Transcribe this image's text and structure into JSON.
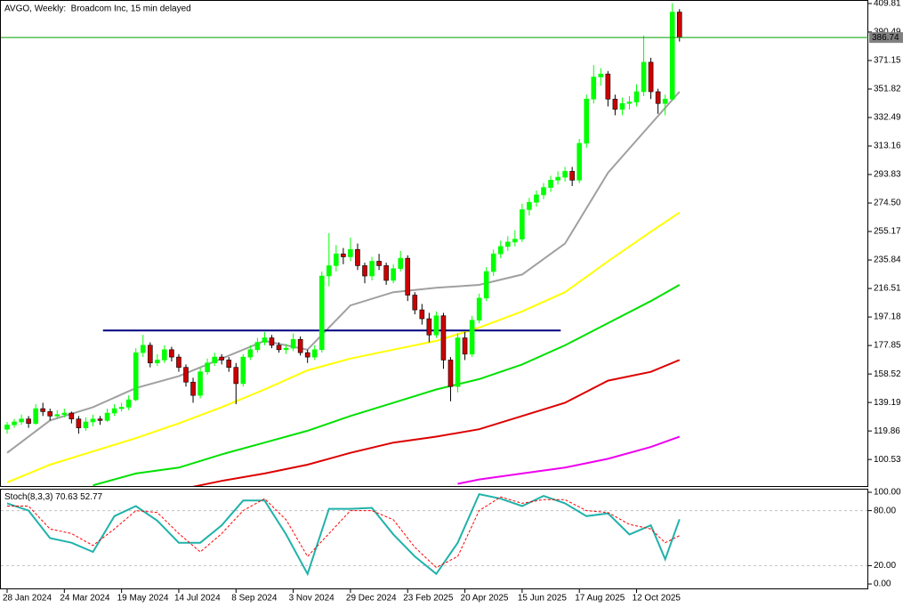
{
  "chart_data": {
    "type": "candlestick",
    "title": "AVGO, Weekly:  Broadcom Inc, 15 min delayed",
    "categories": [
      "28 Jan 2024",
      null,
      null,
      null,
      null,
      null,
      null,
      null,
      "24 Mar 2024",
      null,
      null,
      null,
      null,
      null,
      null,
      null,
      "19 May 2024",
      null,
      null,
      null,
      null,
      null,
      null,
      null,
      "14 Jul 2024",
      null,
      null,
      null,
      null,
      null,
      null,
      null,
      "8 Sep 2024",
      null,
      null,
      null,
      null,
      null,
      null,
      null,
      "3 Nov 2024",
      null,
      null,
      null,
      null,
      null,
      null,
      null,
      "29 Dec 2024",
      null,
      null,
      null,
      null,
      null,
      null,
      null,
      "23 Feb 2025",
      null,
      null,
      null,
      null,
      null,
      null,
      null,
      "20 Apr 2025",
      null,
      null,
      null,
      null,
      null,
      null,
      null,
      "15 Jun 2025",
      null,
      null,
      null,
      null,
      null,
      null,
      null,
      "17 Aug 2025",
      null,
      null,
      null,
      null,
      null,
      null,
      null,
      "12 Oct 2025",
      null,
      null,
      null,
      null,
      null,
      null
    ],
    "candles": [
      [
        121,
        126,
        118,
        124
      ],
      [
        124,
        128,
        122,
        126
      ],
      [
        126,
        131,
        124,
        128
      ],
      [
        128,
        130,
        122,
        125
      ],
      [
        125,
        138,
        124,
        135
      ],
      [
        135,
        139,
        130,
        133
      ],
      [
        133,
        135,
        127,
        130
      ],
      [
        130,
        134,
        128,
        131
      ],
      [
        131,
        135,
        129,
        132
      ],
      [
        132,
        133,
        125,
        128
      ],
      [
        128,
        130,
        118,
        122
      ],
      [
        122,
        129,
        120,
        126
      ],
      [
        126,
        131,
        123,
        128
      ],
      [
        128,
        130,
        124,
        127
      ],
      [
        127,
        135,
        126,
        132
      ],
      [
        132,
        138,
        130,
        135
      ],
      [
        135,
        139,
        133,
        136
      ],
      [
        136,
        144,
        134,
        141
      ],
      [
        141,
        176,
        140,
        173
      ],
      [
        173,
        185,
        170,
        178
      ],
      [
        178,
        180,
        163,
        166
      ],
      [
        166,
        172,
        164,
        168
      ],
      [
        168,
        178,
        166,
        175
      ],
      [
        175,
        177,
        167,
        170
      ],
      [
        170,
        172,
        160,
        163
      ],
      [
        163,
        165,
        150,
        153
      ],
      [
        153,
        156,
        139,
        144
      ],
      [
        144,
        163,
        142,
        160
      ],
      [
        160,
        169,
        158,
        166
      ],
      [
        166,
        173,
        164,
        170
      ],
      [
        170,
        172,
        165,
        168
      ],
      [
        168,
        170,
        160,
        163
      ],
      [
        163,
        166,
        138,
        152
      ],
      [
        152,
        172,
        150,
        170
      ],
      [
        170,
        178,
        168,
        175
      ],
      [
        175,
        183,
        173,
        180
      ],
      [
        180,
        187,
        178,
        183
      ],
      [
        183,
        185,
        176,
        178
      ],
      [
        178,
        180,
        173,
        175
      ],
      [
        175,
        179,
        172,
        176
      ],
      [
        176,
        186,
        174,
        182
      ],
      [
        182,
        184,
        171,
        173
      ],
      [
        173,
        175,
        166,
        170
      ],
      [
        170,
        178,
        168,
        175
      ],
      [
        175,
        228,
        173,
        225
      ],
      [
        225,
        254,
        218,
        232
      ],
      [
        232,
        246,
        228,
        240
      ],
      [
        240,
        244,
        233,
        238
      ],
      [
        238,
        251,
        235,
        243
      ],
      [
        243,
        247,
        229,
        232
      ],
      [
        232,
        234,
        220,
        225
      ],
      [
        225,
        238,
        222,
        235
      ],
      [
        235,
        240,
        229,
        232
      ],
      [
        232,
        234,
        219,
        222
      ],
      [
        222,
        233,
        220,
        230
      ],
      [
        230,
        242,
        228,
        237
      ],
      [
        237,
        239,
        208,
        212
      ],
      [
        212,
        214,
        199,
        202
      ],
      [
        202,
        206,
        192,
        196
      ],
      [
        196,
        200,
        180,
        185
      ],
      [
        185,
        201,
        183,
        198
      ],
      [
        198,
        200,
        162,
        168
      ],
      [
        168,
        170,
        140,
        150
      ],
      [
        150,
        186,
        146,
        183
      ],
      [
        183,
        187,
        168,
        172
      ],
      [
        172,
        198,
        170,
        195
      ],
      [
        195,
        213,
        193,
        210
      ],
      [
        210,
        231,
        208,
        228
      ],
      [
        228,
        243,
        225,
        240
      ],
      [
        240,
        249,
        237,
        245
      ],
      [
        245,
        252,
        242,
        248
      ],
      [
        248,
        256,
        245,
        250
      ],
      [
        250,
        274,
        248,
        270
      ],
      [
        270,
        278,
        266,
        275
      ],
      [
        275,
        283,
        272,
        280
      ],
      [
        280,
        288,
        277,
        285
      ],
      [
        285,
        293,
        282,
        290
      ],
      [
        290,
        296,
        287,
        292
      ],
      [
        292,
        299,
        289,
        296
      ],
      [
        296,
        299,
        286,
        290
      ],
      [
        290,
        318,
        288,
        315
      ],
      [
        315,
        348,
        312,
        345
      ],
      [
        345,
        368,
        342,
        360
      ],
      [
        360,
        366,
        354,
        362
      ],
      [
        362,
        364,
        340,
        345
      ],
      [
        345,
        348,
        334,
        338
      ],
      [
        338,
        346,
        334,
        342
      ],
      [
        342,
        347,
        338,
        343
      ],
      [
        343,
        355,
        340,
        350
      ],
      [
        350,
        388,
        347,
        370
      ],
      [
        370,
        373,
        345,
        350
      ],
      [
        350,
        352,
        335,
        342
      ],
      [
        342,
        348,
        334,
        345
      ],
      [
        345,
        410,
        344,
        404
      ],
      [
        404,
        406,
        384,
        386.74
      ]
    ],
    "colors": {
      "up": "#00ff00",
      "down": "#cc0000",
      "last_price": "#00a000"
    },
    "ylim": [
      81.9,
      412.2
    ],
    "yticks": [
      409.81,
      390.49,
      371.15,
      351.82,
      332.49,
      313.16,
      293.83,
      {
        "value": 274.5,
        "label": "274.50"
      },
      255.17,
      235.84,
      216.51,
      197.18,
      177.85,
      158.52,
      139.19,
      119.86,
      100.53
    ],
    "moving_averages": [
      {
        "color": "#a0a0a0",
        "x": [
          0,
          6,
          12,
          18,
          24,
          30,
          36,
          42,
          48,
          54,
          60,
          66,
          72,
          78,
          84,
          90,
          94
        ],
        "values": [
          105,
          127,
          136,
          149,
          157,
          169,
          181,
          175,
          205,
          214,
          217,
          219,
          226,
          247,
          295,
          328,
          350
        ]
      },
      {
        "color": "#ffff00",
        "x": [
          0,
          6,
          12,
          18,
          24,
          30,
          36,
          42,
          48,
          54,
          60,
          66,
          72,
          78,
          84,
          90,
          94
        ],
        "values": [
          85,
          97,
          106,
          115,
          125,
          136,
          148,
          161,
          169,
          175,
          181,
          190,
          201,
          214,
          235,
          255,
          268
        ]
      },
      {
        "color": "#00e000",
        "x": [
          12,
          18,
          24,
          30,
          36,
          42,
          48,
          54,
          60,
          66,
          72,
          78,
          84,
          90,
          94
        ],
        "values": [
          83,
          91,
          95,
          104,
          112,
          120,
          130,
          139,
          148,
          155,
          165,
          178,
          193,
          208,
          219
        ]
      },
      {
        "color": "#dd0000",
        "x": [
          26,
          30,
          36,
          42,
          48,
          54,
          60,
          66,
          72,
          78,
          84,
          90,
          94
        ],
        "values": [
          82,
          86,
          91,
          97,
          105,
          112,
          116,
          121,
          130,
          139,
          154,
          160,
          168
        ]
      },
      {
        "color": "#ee00ee",
        "x": [
          63,
          66,
          72,
          78,
          84,
          90,
          94
        ],
        "values": [
          84,
          87,
          91,
          95,
          101,
          109,
          116
        ]
      }
    ],
    "levels": [
      {
        "value": 188,
        "x": [
          13.4,
          77.4
        ],
        "color": "#000080"
      }
    ],
    "indicator": {
      "title": "Stoch(8,3,3)",
      "ylim": [
        -5.8,
        103.9
      ],
      "yticks": [
        {
          "value": 100,
          "label": "100.00"
        },
        {
          "value": 80,
          "label": "80.00"
        },
        {
          "value": 20,
          "label": "20.00"
        },
        {
          "value": 0,
          "label": "0.00"
        }
      ],
      "levels": [
        80,
        20
      ],
      "series": [
        {
          "color": "#20b2aa",
          "x": [
            0,
            3,
            6,
            9,
            12,
            15,
            18,
            21,
            24,
            27,
            30,
            33,
            36,
            39,
            42,
            45,
            48,
            51,
            54,
            57,
            60,
            63,
            66,
            69,
            72,
            75,
            78,
            81,
            84,
            87,
            90,
            92,
            94
          ],
          "values": [
            88,
            80,
            50,
            45,
            35,
            74,
            85,
            69,
            45,
            45,
            64,
            91,
            91,
            54,
            11,
            82,
            82,
            83,
            54,
            30,
            11,
            45,
            98,
            93,
            85,
            96,
            88,
            74,
            77,
            54,
            64,
            27,
            70.63
          ]
        },
        {
          "color": "#ff0000",
          "dash": true,
          "x": [
            0,
            3,
            6,
            9,
            12,
            15,
            18,
            21,
            24,
            27,
            30,
            33,
            36,
            39,
            42,
            45,
            48,
            51,
            54,
            57,
            60,
            63,
            66,
            69,
            72,
            75,
            78,
            81,
            84,
            87,
            90,
            92,
            94
          ],
          "values": [
            85,
            85,
            60,
            55,
            42,
            60,
            80,
            78,
            55,
            35,
            55,
            80,
            93,
            70,
            30,
            55,
            80,
            80,
            70,
            40,
            18,
            30,
            80,
            95,
            88,
            92,
            92,
            80,
            78,
            65,
            60,
            45,
            52.77
          ]
        }
      ]
    }
  }
}
